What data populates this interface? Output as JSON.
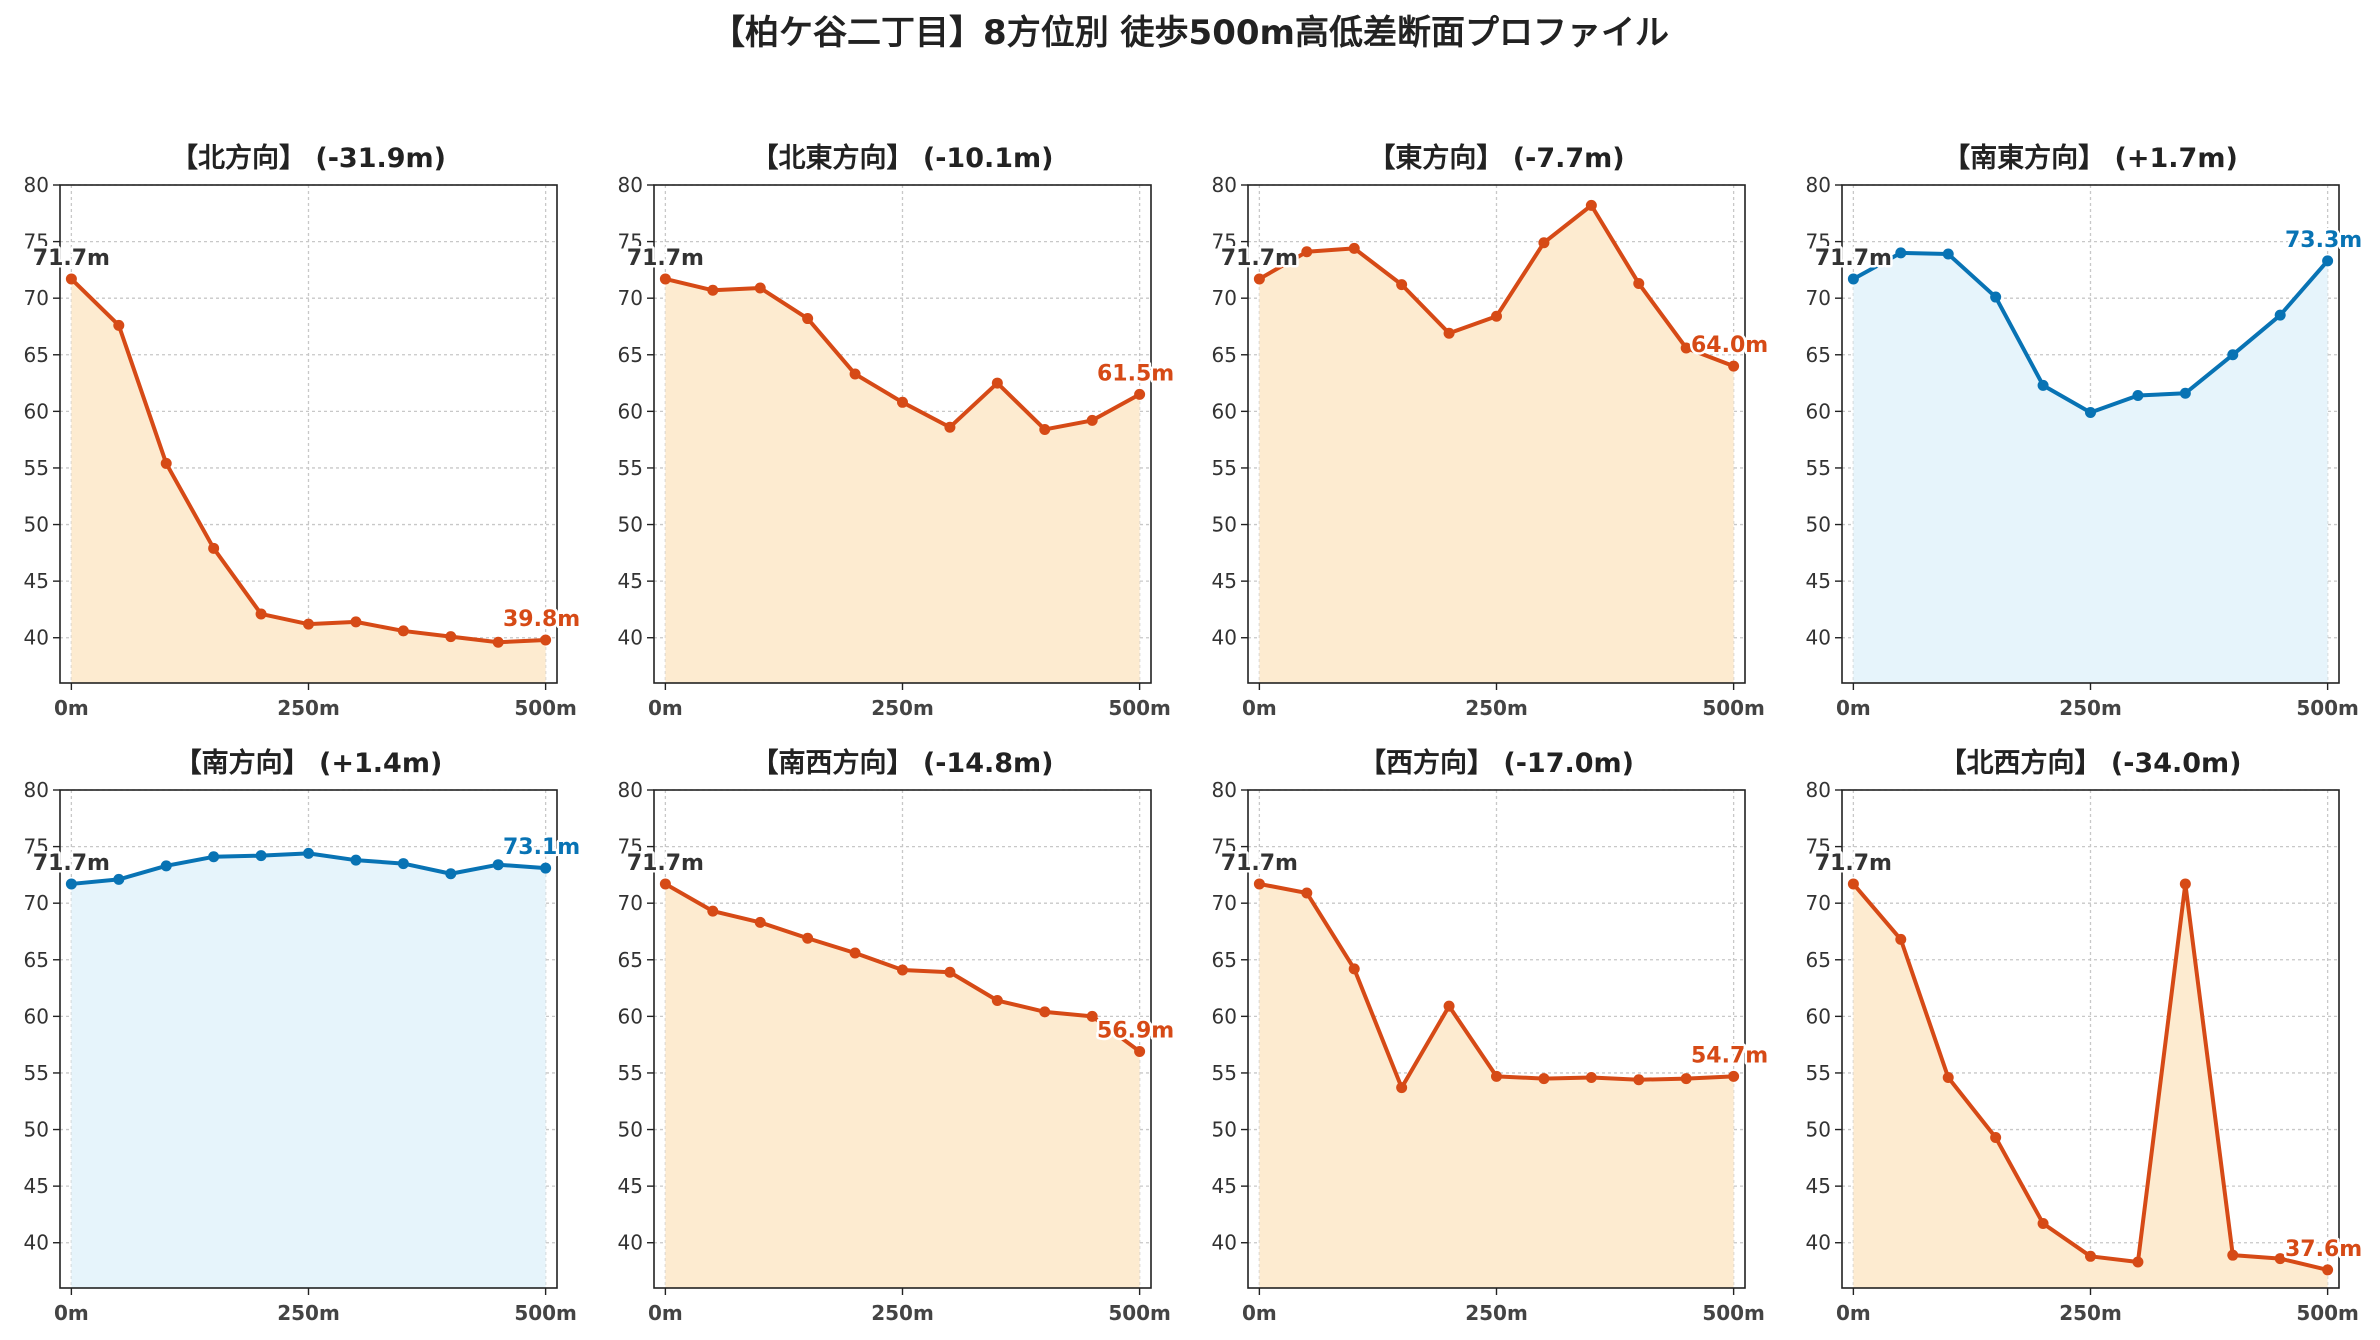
{
  "title": "【柏ケ谷二丁目】8方位別 徒歩500m高低差断面プロファイル",
  "colors": {
    "down_line": "#d64a16",
    "down_fill": "#fdebd0",
    "up_line": "#0873b4",
    "up_fill": "#e6f4fb",
    "grid": "#c8c8c8",
    "axis": "#222222"
  },
  "chart_data": [
    {
      "type": "area",
      "title": "【北方向】 (-31.9m)",
      "trend": "down",
      "x": [
        0,
        50,
        100,
        150,
        200,
        250,
        300,
        350,
        400,
        450,
        500
      ],
      "y": [
        71.7,
        67.6,
        55.4,
        47.9,
        42.1,
        41.2,
        41.4,
        40.6,
        40.1,
        39.6,
        39.8
      ],
      "start_label": "71.7m",
      "end_label": "39.8m",
      "xticks": [
        "0m",
        "250m",
        "500m"
      ],
      "yticks": [
        "40",
        "45",
        "50",
        "55",
        "60",
        "65",
        "70",
        "75",
        "80"
      ],
      "ylim": [
        36,
        80
      ],
      "xlim": [
        -12,
        512
      ],
      "grid": true
    },
    {
      "type": "area",
      "title": "【北東方向】 (-10.1m)",
      "trend": "down",
      "x": [
        0,
        50,
        100,
        150,
        200,
        250,
        300,
        350,
        400,
        450,
        500
      ],
      "y": [
        71.7,
        70.7,
        70.9,
        68.2,
        63.3,
        60.8,
        58.6,
        62.5,
        58.4,
        59.2,
        61.5
      ],
      "start_label": "71.7m",
      "end_label": "61.5m",
      "xticks": [
        "0m",
        "250m",
        "500m"
      ],
      "yticks": [
        "40",
        "45",
        "50",
        "55",
        "60",
        "65",
        "70",
        "75",
        "80"
      ],
      "ylim": [
        36,
        80
      ],
      "xlim": [
        -12,
        512
      ],
      "grid": true
    },
    {
      "type": "area",
      "title": "【東方向】 (-7.7m)",
      "trend": "down",
      "x": [
        0,
        50,
        100,
        150,
        200,
        250,
        300,
        350,
        400,
        450,
        500
      ],
      "y": [
        71.7,
        74.1,
        74.4,
        71.2,
        66.9,
        68.4,
        74.9,
        78.2,
        71.3,
        65.6,
        64.0
      ],
      "start_label": "71.7m",
      "end_label": "64.0m",
      "xticks": [
        "0m",
        "250m",
        "500m"
      ],
      "yticks": [
        "40",
        "45",
        "50",
        "55",
        "60",
        "65",
        "70",
        "75",
        "80"
      ],
      "ylim": [
        36,
        80
      ],
      "xlim": [
        -12,
        512
      ],
      "grid": true
    },
    {
      "type": "area",
      "title": "【南東方向】 (+1.7m)",
      "trend": "up",
      "x": [
        0,
        50,
        100,
        150,
        200,
        250,
        300,
        350,
        400,
        450,
        500
      ],
      "y": [
        71.7,
        74.0,
        73.9,
        70.1,
        62.3,
        59.9,
        61.4,
        61.6,
        65.0,
        68.5,
        73.3
      ],
      "start_label": "71.7m",
      "end_label": "73.3m",
      "xticks": [
        "0m",
        "250m",
        "500m"
      ],
      "yticks": [
        "40",
        "45",
        "50",
        "55",
        "60",
        "65",
        "70",
        "75",
        "80"
      ],
      "ylim": [
        36,
        80
      ],
      "xlim": [
        -12,
        512
      ],
      "grid": true
    },
    {
      "type": "area",
      "title": "【南方向】 (+1.4m)",
      "trend": "up",
      "x": [
        0,
        50,
        100,
        150,
        200,
        250,
        300,
        350,
        400,
        450,
        500
      ],
      "y": [
        71.7,
        72.1,
        73.3,
        74.1,
        74.2,
        74.4,
        73.8,
        73.5,
        72.6,
        73.4,
        73.1
      ],
      "start_label": "71.7m",
      "end_label": "73.1m",
      "xticks": [
        "0m",
        "250m",
        "500m"
      ],
      "yticks": [
        "40",
        "45",
        "50",
        "55",
        "60",
        "65",
        "70",
        "75",
        "80"
      ],
      "ylim": [
        36,
        80
      ],
      "xlim": [
        -12,
        512
      ],
      "grid": true
    },
    {
      "type": "area",
      "title": "【南西方向】 (-14.8m)",
      "trend": "down",
      "x": [
        0,
        50,
        100,
        150,
        200,
        250,
        300,
        350,
        400,
        450,
        500
      ],
      "y": [
        71.7,
        69.3,
        68.3,
        66.9,
        65.6,
        64.1,
        63.9,
        61.4,
        60.4,
        60.0,
        56.9
      ],
      "start_label": "71.7m",
      "end_label": "56.9m",
      "xticks": [
        "0m",
        "250m",
        "500m"
      ],
      "yticks": [
        "40",
        "45",
        "50",
        "55",
        "60",
        "65",
        "70",
        "75",
        "80"
      ],
      "ylim": [
        36,
        80
      ],
      "xlim": [
        -12,
        512
      ],
      "grid": true
    },
    {
      "type": "area",
      "title": "【西方向】 (-17.0m)",
      "trend": "down",
      "x": [
        0,
        50,
        100,
        150,
        200,
        250,
        300,
        350,
        400,
        450,
        500
      ],
      "y": [
        71.7,
        70.9,
        64.2,
        53.7,
        60.9,
        54.7,
        54.5,
        54.6,
        54.4,
        54.5,
        54.7
      ],
      "start_label": "71.7m",
      "end_label": "54.7m",
      "xticks": [
        "0m",
        "250m",
        "500m"
      ],
      "yticks": [
        "40",
        "45",
        "50",
        "55",
        "60",
        "65",
        "70",
        "75",
        "80"
      ],
      "ylim": [
        36,
        80
      ],
      "xlim": [
        -12,
        512
      ],
      "grid": true
    },
    {
      "type": "area",
      "title": "【北西方向】 (-34.0m)",
      "trend": "down",
      "x": [
        0,
        50,
        100,
        150,
        200,
        250,
        300,
        350,
        400,
        450,
        500
      ],
      "y": [
        71.7,
        66.8,
        54.6,
        49.3,
        41.7,
        38.8,
        38.3,
        71.7,
        38.9,
        38.6,
        37.6
      ],
      "start_label": "71.7m",
      "end_label": "37.6m",
      "xticks": [
        "0m",
        "250m",
        "500m"
      ],
      "yticks": [
        "40",
        "45",
        "50",
        "55",
        "60",
        "65",
        "70",
        "75",
        "80"
      ],
      "ylim": [
        36,
        80
      ],
      "xlim": [
        -12,
        512
      ],
      "grid": true
    }
  ]
}
